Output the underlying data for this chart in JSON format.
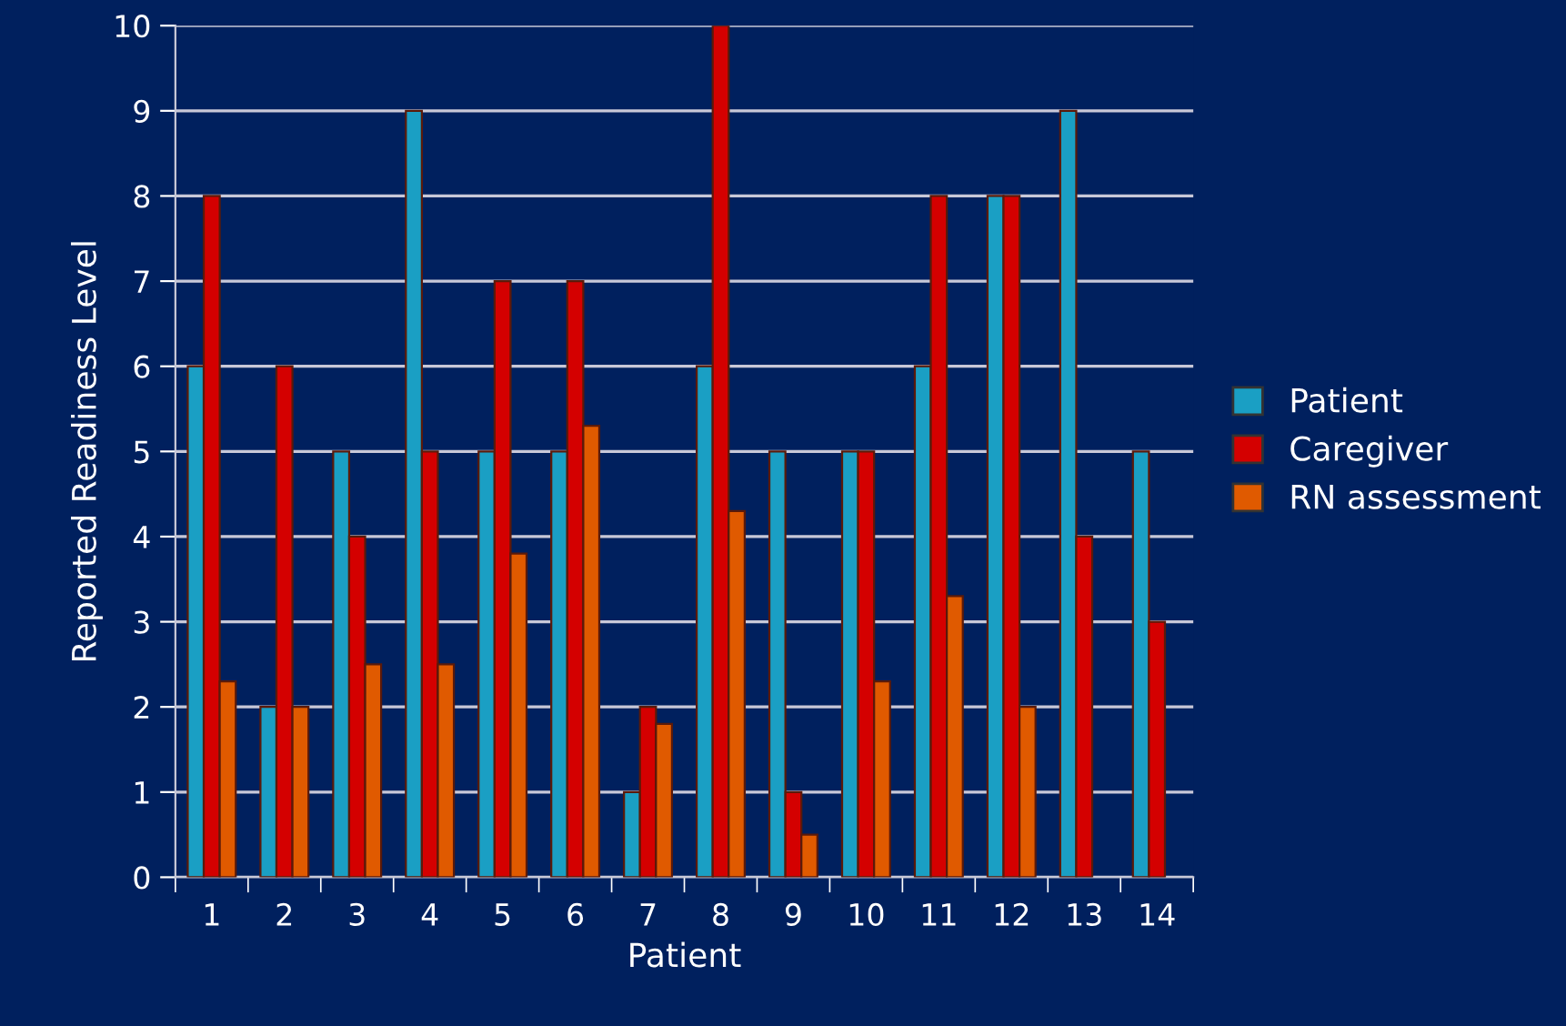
{
  "chart_data": {
    "type": "bar",
    "xlabel": "Patient",
    "ylabel": "Reported Readiness Level",
    "categories": [
      "1",
      "2",
      "3",
      "4",
      "5",
      "6",
      "7",
      "8",
      "9",
      "10",
      "11",
      "12",
      "13",
      "14"
    ],
    "series": [
      {
        "name": "Patient",
        "color": "#1a9fc4",
        "values": [
          6,
          2,
          5,
          9,
          5,
          5,
          1,
          6,
          5,
          5,
          6,
          8,
          9,
          5
        ]
      },
      {
        "name": "Caregiver",
        "color": "#d40000",
        "values": [
          8,
          6,
          4,
          5,
          7,
          7,
          2,
          10,
          1,
          5,
          8,
          8,
          4,
          3
        ]
      },
      {
        "name": "RN assessment",
        "color": "#e05a00",
        "values": [
          2.3,
          2.0,
          2.5,
          2.5,
          3.8,
          5.3,
          1.8,
          4.3,
          0.5,
          2.3,
          3.3,
          2.0,
          null,
          null
        ]
      }
    ],
    "ylim": [
      0,
      10
    ],
    "yticks": [
      0,
      1,
      2,
      3,
      4,
      5,
      6,
      7,
      8,
      9,
      10
    ],
    "grid": "y",
    "legend": "right"
  }
}
